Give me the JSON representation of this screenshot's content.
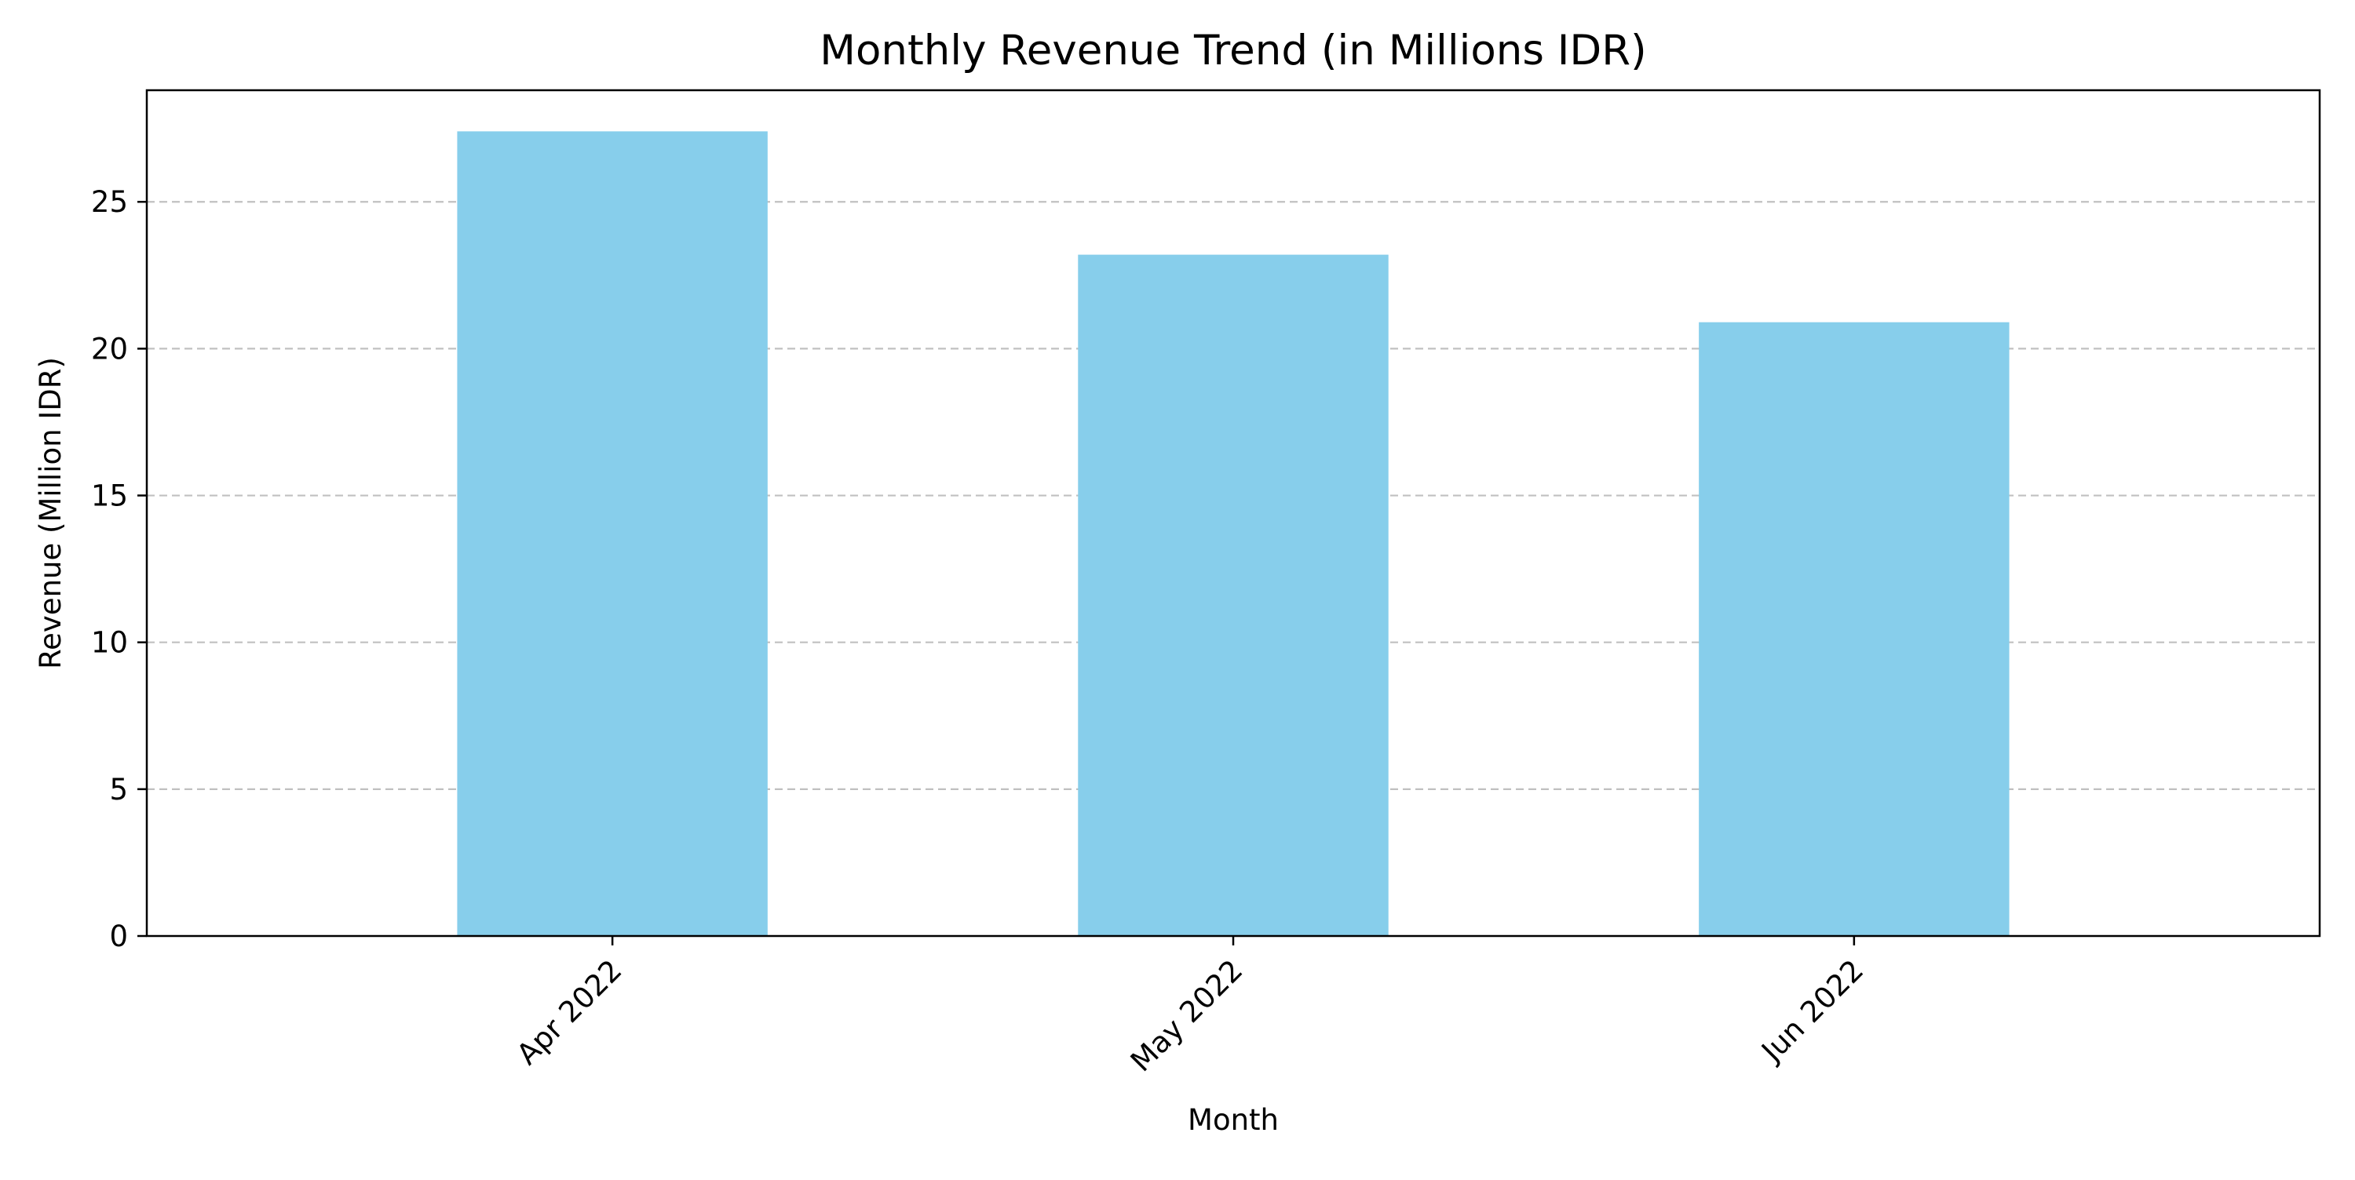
{
  "chart_data": {
    "type": "bar",
    "title": "Monthly Revenue Trend (in Millions IDR)",
    "xlabel": "Month",
    "ylabel": "Revenue (Million IDR)",
    "categories": [
      "Apr 2022",
      "May 2022",
      "Jun 2022"
    ],
    "values": [
      27.4,
      23.2,
      20.9
    ],
    "ylim": [
      0,
      28.8
    ],
    "yticks": [
      0,
      5,
      10,
      15,
      20,
      25
    ],
    "grid": "y-dashed",
    "legend": "none",
    "colors": {
      "bar": "#87ceeb",
      "grid": "#c0c0c0",
      "axis": "#000000"
    }
  }
}
